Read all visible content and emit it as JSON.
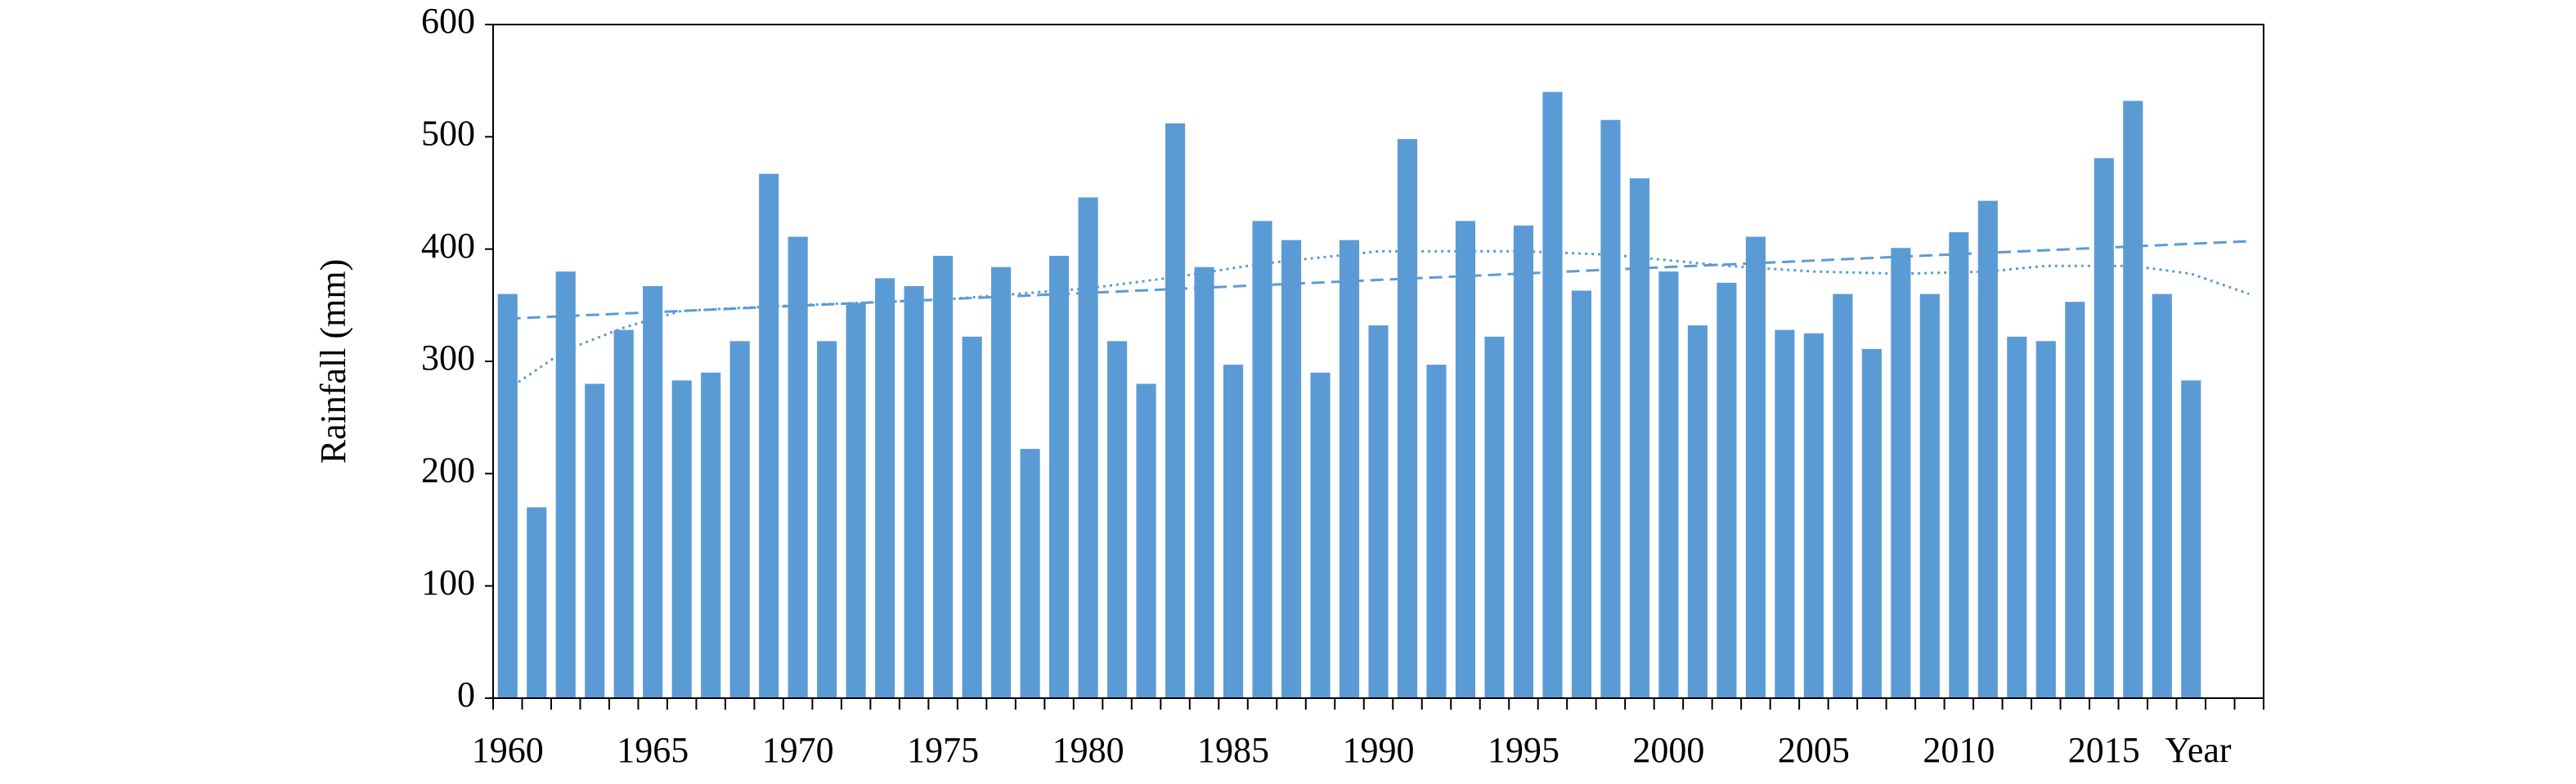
{
  "chart_data": {
    "type": "bar",
    "y_label": "Rainfall (mm)",
    "x_label": "Year",
    "categories": [
      "1960",
      null,
      null,
      null,
      null,
      "1965",
      null,
      null,
      null,
      null,
      "1970",
      null,
      null,
      null,
      null,
      "1975",
      null,
      null,
      null,
      null,
      "1980",
      null,
      null,
      null,
      null,
      "1985",
      null,
      null,
      null,
      null,
      "1990",
      null,
      null,
      null,
      null,
      "1995",
      null,
      null,
      null,
      null,
      "2000",
      null,
      null,
      null,
      null,
      "2005",
      null,
      null,
      null,
      null,
      "2010",
      null,
      null,
      null,
      null,
      "2015",
      null,
      null,
      null,
      null,
      null
    ],
    "series": [
      {
        "color": "#5b9bd5",
        "values": [
          360,
          170,
          380,
          280,
          328,
          367,
          283,
          290,
          318,
          467,
          411,
          318,
          352,
          374,
          367,
          394,
          322,
          384,
          222,
          394,
          446,
          318,
          280,
          512,
          384,
          297,
          425,
          408,
          290,
          408,
          332,
          498,
          297,
          425,
          322,
          421,
          540,
          363,
          515,
          463,
          380,
          332,
          370,
          411,
          328,
          325,
          360,
          311,
          401,
          360,
          415,
          443,
          322,
          318,
          353,
          481,
          532,
          360,
          283,
          null,
          null
        ]
      }
    ],
    "trend_lines": [
      {
        "style": "dashed",
        "color": "#5b9bd5",
        "x": [
          1960,
          2020
        ],
        "values": [
          338,
          407
        ]
      },
      {
        "style": "dotted",
        "color": "#5b9bd5",
        "x": [
          1960,
          1962,
          1964,
          1966,
          1970,
          1975,
          1980,
          1983,
          1986,
          1990,
          1995,
          1998,
          2002,
          2005,
          2008,
          2011,
          2013,
          2016,
          2018,
          2020
        ],
        "values": [
          275,
          310,
          330,
          345,
          350,
          355,
          365,
          375,
          387,
          398,
          398,
          395,
          385,
          380,
          378,
          380,
          385,
          385,
          378,
          360
        ]
      }
    ],
    "ylim": [
      0,
      600
    ],
    "yticks": [
      0,
      100,
      200,
      300,
      400,
      500,
      600
    ]
  }
}
